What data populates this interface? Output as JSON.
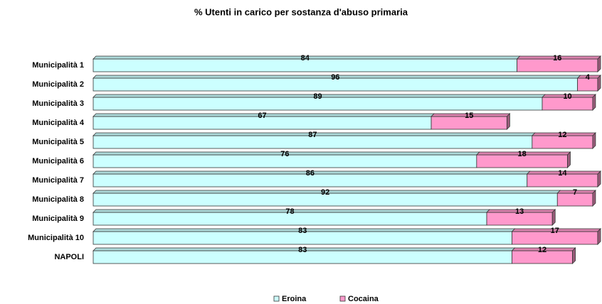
{
  "chart_data": {
    "type": "stacked-bar-horizontal",
    "title": "% Utenti in carico per sostanza d'abuso primaria",
    "categories": [
      "Municipalità 1",
      "Municipalità 2",
      "Municipalità 3",
      "Municipalità 4",
      "Municipalità 5",
      "Municipalità 6",
      "Municipalità 7",
      "Municipalità 8",
      "Municipalità 9",
      "Municipalità 10",
      "NAPOLI"
    ],
    "series": [
      {
        "name": "Eroina",
        "color": "#ccffff",
        "values": [
          84,
          96,
          89,
          67,
          87,
          76,
          86,
          92,
          78,
          83,
          83
        ]
      },
      {
        "name": "Cocaina",
        "color": "#ff99cc",
        "values": [
          16,
          4,
          10,
          15,
          12,
          18,
          14,
          7,
          13,
          17,
          12
        ]
      }
    ],
    "xlim": [
      0,
      100
    ],
    "legend": "bottom"
  }
}
